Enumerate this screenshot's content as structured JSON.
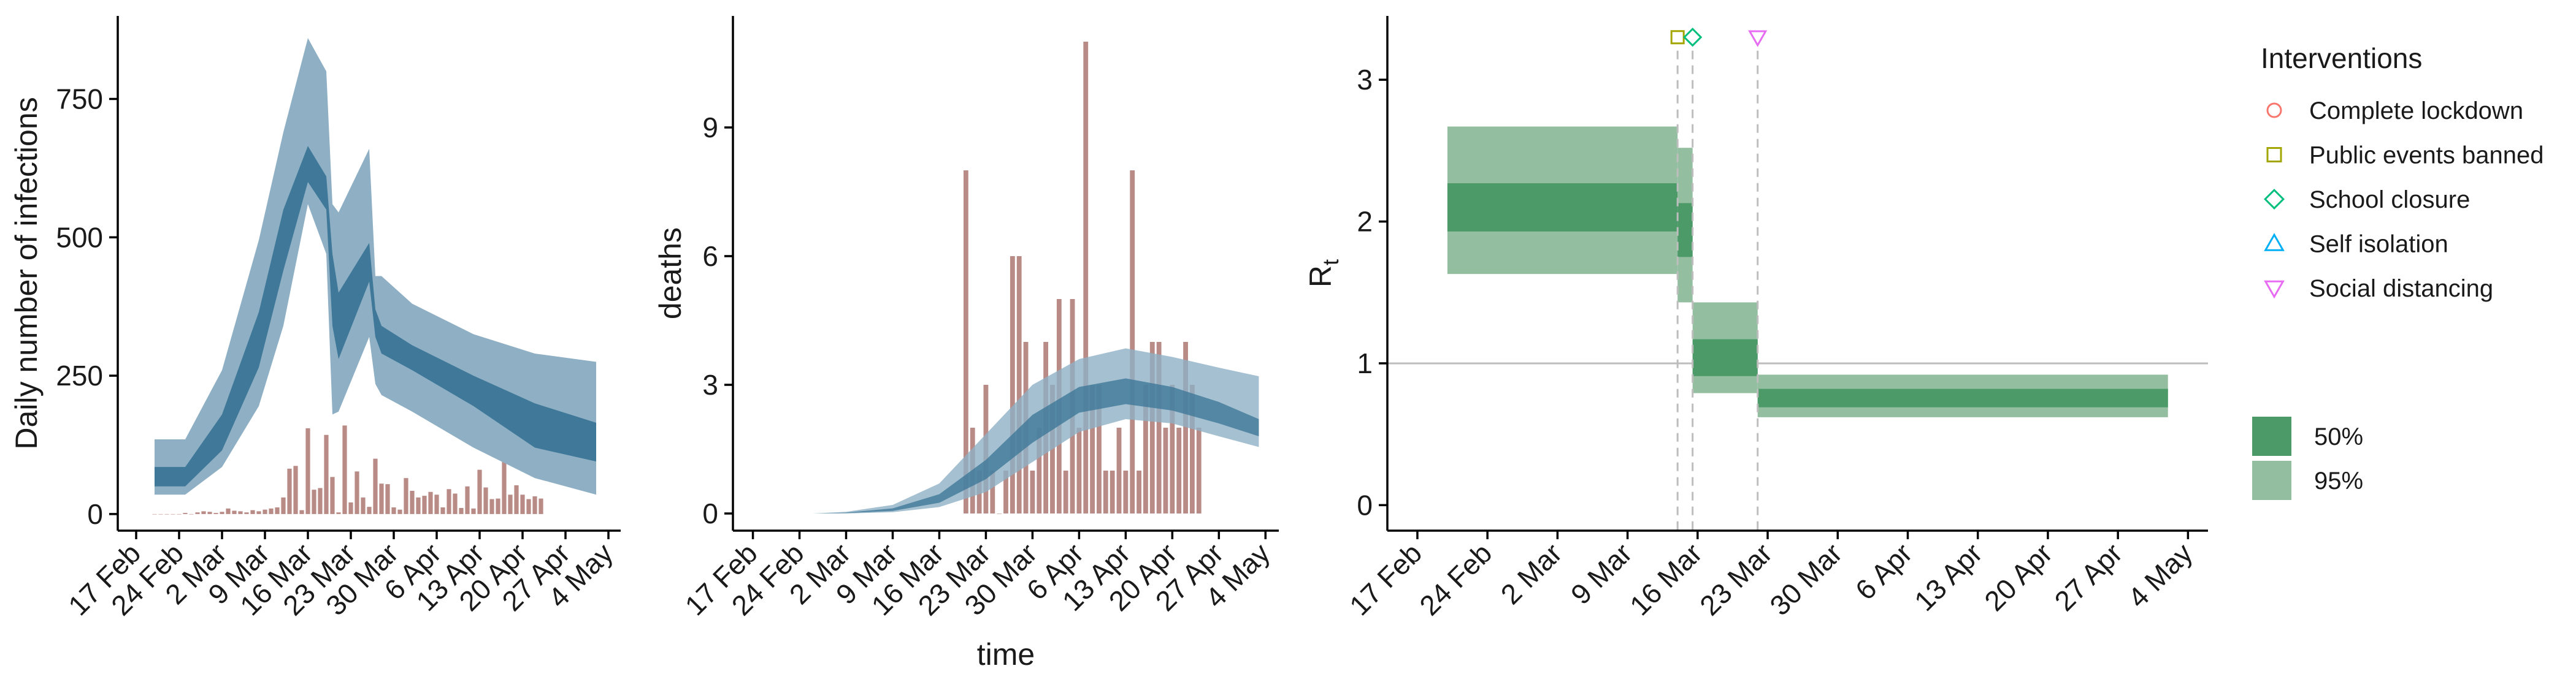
{
  "colors": {
    "bars": "#b98b86",
    "band_inner": "#3f7898",
    "band_outer": "#8fb0c4",
    "rt_50": "#4c9a68",
    "rt_95": "#93bfa0",
    "reference": "#bdbdbd",
    "complete_lockdown": "#f8766d",
    "public_events_banned": "#a3a500",
    "school_closure": "#00bf7d",
    "self_isolation": "#00b0f6",
    "social_distancing": "#e76bf3"
  },
  "chart_data": [
    {
      "type": "bar",
      "panel": "infections",
      "xlabel": "",
      "ylabel": "Daily number of infections",
      "xlim": [
        "2020-02-14",
        "2020-05-06"
      ],
      "ylim": [
        -30,
        900
      ],
      "x_ticks": [
        "2020-02-17",
        "2020-02-24",
        "2020-03-02",
        "2020-03-09",
        "2020-03-16",
        "2020-03-23",
        "2020-03-30",
        "2020-04-06",
        "2020-04-13",
        "2020-04-20",
        "2020-04-27",
        "2020-05-04"
      ],
      "x_tick_labels": [
        "17 Feb",
        "24 Feb",
        "2 Mar",
        "9 Mar",
        "16 Mar",
        "23 Mar",
        "30 Mar",
        "6 Apr",
        "13 Apr",
        "20 Apr",
        "27 Apr",
        "4 May"
      ],
      "y_ticks": [
        0,
        250,
        500,
        750
      ],
      "y_tick_labels": [
        "0",
        "250",
        "500",
        "750"
      ],
      "bars": {
        "start": "2020-02-20",
        "values": [
          0,
          0,
          0,
          0,
          0,
          2,
          0,
          3,
          5,
          4,
          2,
          4,
          10,
          6,
          5,
          3,
          7,
          5,
          8,
          10,
          12,
          30,
          82,
          87,
          7,
          155,
          44,
          47,
          143,
          67,
          3,
          160,
          21,
          77,
          30,
          13,
          100,
          55,
          54,
          12,
          8,
          65,
          42,
          30,
          33,
          40,
          35,
          12,
          45,
          37,
          11,
          50,
          10,
          80,
          48,
          27,
          28,
          96,
          35,
          52,
          35,
          27,
          32,
          28
        ]
      },
      "bands": {
        "x": [
          "2020-02-20",
          "2020-02-25",
          "2020-03-02",
          "2020-03-08",
          "2020-03-12",
          "2020-03-16",
          "2020-03-19",
          "2020-03-20",
          "2020-03-21",
          "2020-03-26",
          "2020-03-27",
          "2020-03-28",
          "2020-04-02",
          "2020-04-12",
          "2020-04-22",
          "2020-05-02"
        ],
        "outer_lo": [
          35,
          35,
          85,
          195,
          340,
          560,
          470,
          180,
          185,
          320,
          235,
          215,
          185,
          120,
          65,
          35
        ],
        "inner_lo": [
          50,
          50,
          115,
          265,
          440,
          600,
          550,
          340,
          280,
          420,
          320,
          290,
          260,
          195,
          120,
          95
        ],
        "inner_hi": [
          85,
          85,
          180,
          365,
          550,
          665,
          610,
          470,
          400,
          490,
          370,
          340,
          305,
          250,
          200,
          165
        ],
        "outer_hi": [
          135,
          135,
          260,
          495,
          690,
          860,
          800,
          560,
          545,
          660,
          430,
          430,
          380,
          325,
          290,
          275
        ]
      }
    },
    {
      "type": "bar",
      "panel": "deaths",
      "xlabel": "time",
      "ylabel": "deaths",
      "xlim": [
        "2020-02-14",
        "2020-05-06"
      ],
      "ylim": [
        -0.4,
        11.6
      ],
      "x_ticks": [
        "2020-02-17",
        "2020-02-24",
        "2020-03-02",
        "2020-03-09",
        "2020-03-16",
        "2020-03-23",
        "2020-03-30",
        "2020-04-06",
        "2020-04-13",
        "2020-04-20",
        "2020-04-27",
        "2020-05-04"
      ],
      "x_tick_labels": [
        "17 Feb",
        "24 Feb",
        "2 Mar",
        "9 Mar",
        "16 Mar",
        "23 Mar",
        "30 Mar",
        "6 Apr",
        "13 Apr",
        "20 Apr",
        "27 Apr",
        "4 May"
      ],
      "y_ticks": [
        0,
        3,
        6,
        9
      ],
      "y_tick_labels": [
        "0",
        "3",
        "6",
        "9"
      ],
      "bars": {
        "start": "2020-03-20",
        "values": [
          8,
          2,
          1,
          3,
          1,
          0,
          1,
          6,
          6,
          4,
          1,
          2,
          4,
          3,
          5,
          1,
          5,
          2,
          11,
          3,
          3,
          1,
          1,
          2,
          1,
          8,
          1,
          3,
          4,
          4,
          2,
          3,
          2,
          4,
          3,
          2
        ]
      },
      "bands": {
        "x": [
          "2020-02-26",
          "2020-03-02",
          "2020-03-09",
          "2020-03-16",
          "2020-03-23",
          "2020-03-30",
          "2020-04-06",
          "2020-04-13",
          "2020-04-20",
          "2020-04-27",
          "2020-05-03"
        ],
        "outer_lo": [
          0,
          0,
          0.03,
          0.15,
          0.5,
          1.2,
          1.9,
          2.2,
          2.1,
          1.8,
          1.55
        ],
        "inner_lo": [
          0,
          0.01,
          0.06,
          0.25,
          0.8,
          1.65,
          2.35,
          2.55,
          2.4,
          2.1,
          1.8
        ],
        "inner_hi": [
          0,
          0.02,
          0.12,
          0.45,
          1.25,
          2.3,
          2.95,
          3.15,
          2.95,
          2.6,
          2.2
        ],
        "outer_hi": [
          0,
          0.04,
          0.2,
          0.7,
          1.85,
          3.0,
          3.6,
          3.85,
          3.65,
          3.4,
          3.2
        ]
      }
    },
    {
      "type": "area",
      "panel": "rt",
      "xlabel": "",
      "ylabel": "R",
      "ylabel_sub": "t",
      "xlim": [
        "2020-02-14",
        "2020-05-06"
      ],
      "ylim": [
        -0.18,
        3.45
      ],
      "x_ticks": [
        "2020-02-17",
        "2020-02-24",
        "2020-03-02",
        "2020-03-09",
        "2020-03-16",
        "2020-03-23",
        "2020-03-30",
        "2020-04-06",
        "2020-04-13",
        "2020-04-20",
        "2020-04-27",
        "2020-05-04"
      ],
      "x_tick_labels": [
        "17 Feb",
        "24 Feb",
        "2 Mar",
        "9 Mar",
        "16 Mar",
        "23 Mar",
        "30 Mar",
        "6 Apr",
        "13 Apr",
        "20 Apr",
        "27 Apr",
        "4 May"
      ],
      "y_ticks": [
        0,
        1,
        2,
        3
      ],
      "y_tick_labels": [
        "0",
        "1",
        "2",
        "3"
      ],
      "reference_y": 1,
      "segments": [
        {
          "start": "2020-02-20",
          "end": "2020-03-14",
          "lo95": 1.63,
          "lo50": 1.93,
          "hi50": 2.27,
          "hi95": 2.67
        },
        {
          "start": "2020-03-14",
          "end": "2020-03-15.5",
          "lo95": 1.43,
          "lo50": 1.75,
          "hi50": 2.13,
          "hi95": 2.52
        },
        {
          "start": "2020-03-15.5",
          "end": "2020-03-22",
          "lo95": 0.79,
          "lo50": 0.91,
          "hi50": 1.17,
          "hi95": 1.43
        },
        {
          "start": "2020-03-22",
          "end": "2020-05-02",
          "lo95": 0.62,
          "lo50": 0.69,
          "hi50": 0.82,
          "hi95": 0.92
        }
      ],
      "interventions": [
        {
          "key": "public_events_banned",
          "date": "2020-03-14",
          "shape": "square",
          "y": 3.3
        },
        {
          "key": "school_closure",
          "date": "2020-03-15.5",
          "shape": "diamond",
          "y": 3.3
        },
        {
          "key": "social_distancing",
          "date": "2020-03-22",
          "shape": "triangle-down",
          "y": 3.3
        }
      ]
    }
  ],
  "legend_interventions": {
    "title": "Interventions",
    "items": [
      {
        "key": "complete_lockdown",
        "label": "Complete lockdown",
        "shape": "circle"
      },
      {
        "key": "public_events_banned",
        "label": "Public events banned",
        "shape": "square"
      },
      {
        "key": "school_closure",
        "label": "School closure",
        "shape": "diamond"
      },
      {
        "key": "self_isolation",
        "label": "Self isolation",
        "shape": "triangle-up"
      },
      {
        "key": "social_distancing",
        "label": "Social distancing",
        "shape": "triangle-down"
      }
    ]
  },
  "legend_intervals": {
    "items": [
      {
        "label": "50%",
        "color_key": "rt_50"
      },
      {
        "label": "95%",
        "color_key": "rt_95"
      }
    ]
  }
}
